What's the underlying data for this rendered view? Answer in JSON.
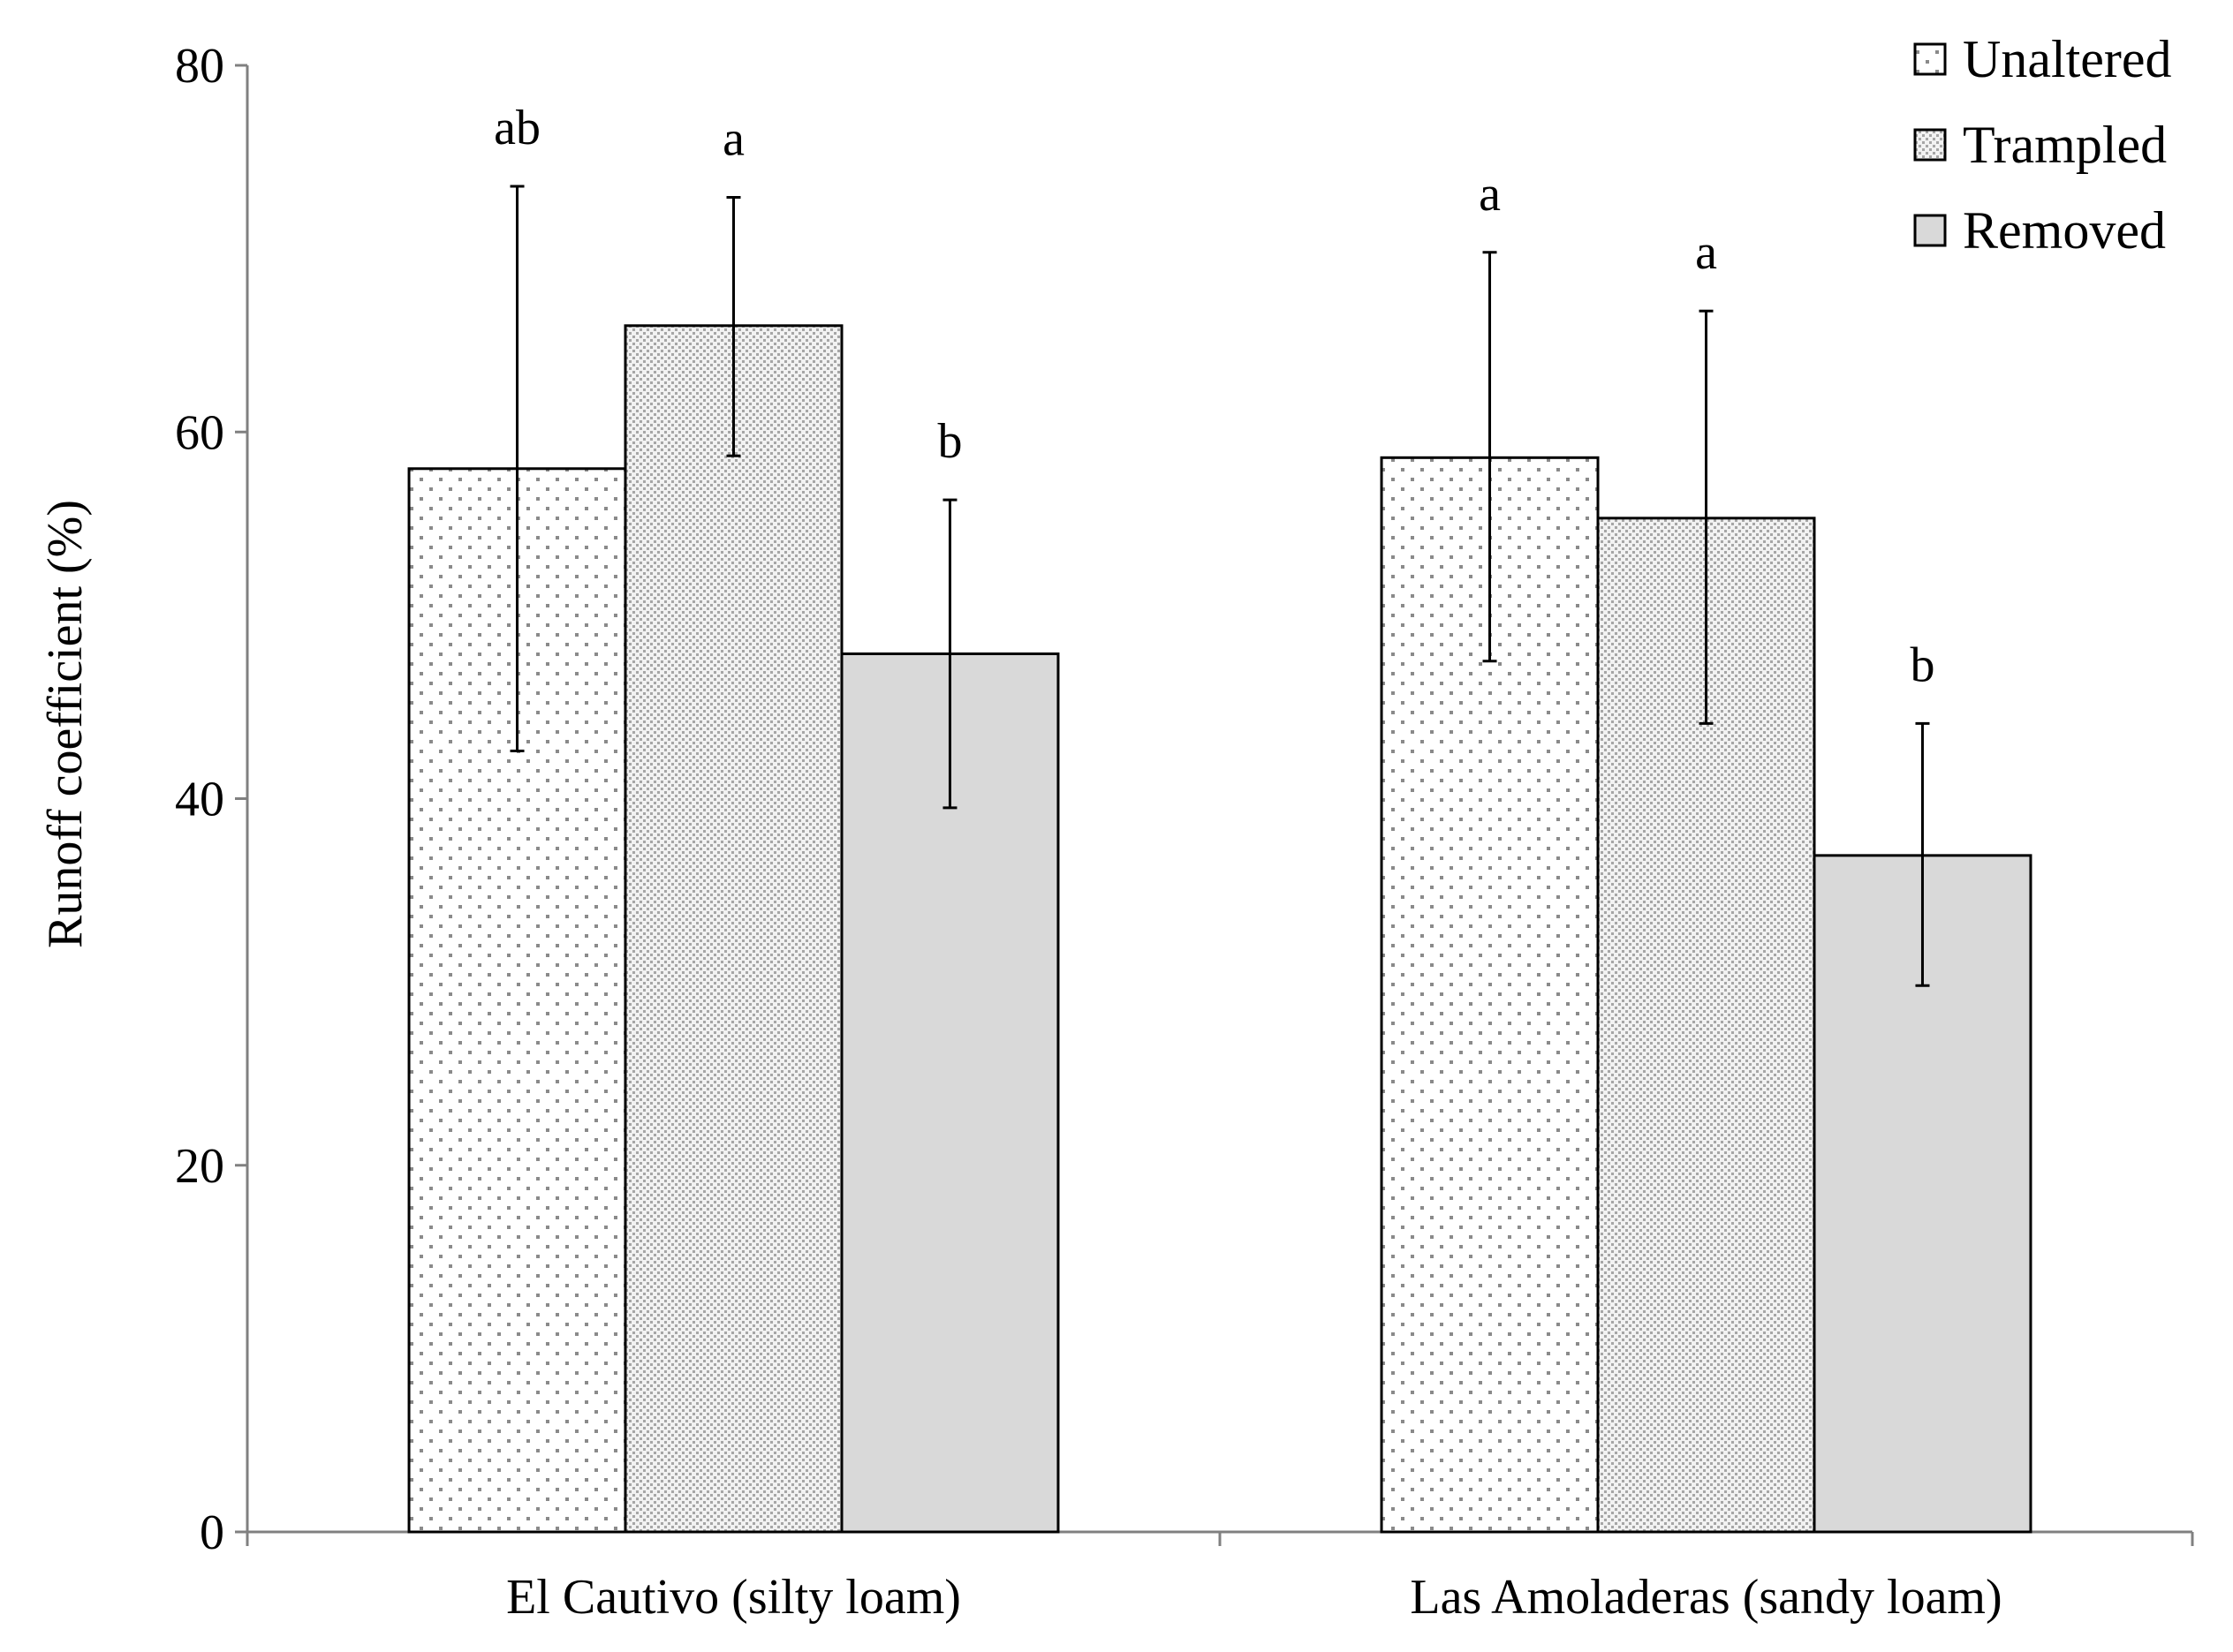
{
  "chart_data": {
    "type": "bar",
    "title": "",
    "xlabel": "",
    "ylabel": "Runoff coefficient (%)",
    "ylim": [
      0,
      80
    ],
    "yticks": [
      "0",
      "20",
      "40",
      "60",
      "80"
    ],
    "grid": false,
    "legend_position": "top-right",
    "categories": [
      "El Cautivo (silty loam)",
      "Las Amoladeras (sandy loam)"
    ],
    "series": [
      {
        "name": "Unaltered",
        "pattern": "sparse-dots",
        "fill": "#ffffff",
        "values": [
          58,
          58.6
        ],
        "error_low": [
          42.6,
          47.5
        ],
        "error_high": [
          73.4,
          69.8
        ],
        "letters": [
          "ab",
          "a"
        ]
      },
      {
        "name": "Trampled",
        "pattern": "dense-dots",
        "fill": "#ebebeb",
        "values": [
          65.8,
          55.3
        ],
        "error_low": [
          58.7,
          44.1
        ],
        "error_high": [
          72.8,
          66.6
        ],
        "letters": [
          "a",
          "a"
        ]
      },
      {
        "name": "Removed",
        "pattern": "solid",
        "fill": "#d9d9d9",
        "values": [
          47.9,
          36.9
        ],
        "error_low": [
          39.5,
          29.8
        ],
        "error_high": [
          56.3,
          44.1
        ],
        "letters": [
          "b",
          "b"
        ]
      }
    ]
  }
}
